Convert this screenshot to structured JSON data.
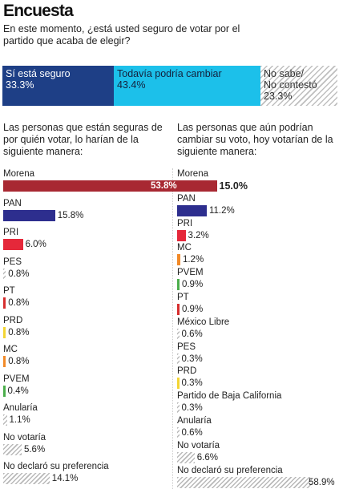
{
  "title": "Encuesta",
  "question": "En este momento, ¿está usted seguro de votar por el partido que acaba de elegir?",
  "stacked": [
    {
      "label": "Sí está seguro",
      "value": "33.3%"
    },
    {
      "label": "Todavía podría cambiar",
      "value": "43.4%"
    },
    {
      "label_line1": "No sabe/",
      "label_line2": "No contestó",
      "value": "23.3%"
    }
  ],
  "left_header": "Las personas que están seguras de por quién votar, lo harían de la siguiente manera:",
  "right_header": "Las personas que aún podrían cambiar su voto, hoy votarían de la siguiente manera:",
  "colors": {
    "Morena": "#a82832",
    "PAN": "#2d2e8e",
    "PRI": "#e5283a",
    "MC": "#f28a28",
    "PVEM": "#4cae4c",
    "PRD": "#f3d533",
    "PT": "#d62d2d",
    "other": "#b9b9b9",
    "sure": "#1e3f86",
    "maybe": "#1cc0ea"
  },
  "chart_data": [
    {
      "type": "bar",
      "orientation": "horizontal",
      "categories": [
        "Morena",
        "PAN",
        "PRI",
        "PES",
        "PT",
        "PRD",
        "MC",
        "PVEM",
        "Anularía",
        "No votaría",
        "No declaró su preferencia"
      ],
      "values": [
        53.8,
        15.8,
        6.0,
        0.8,
        0.8,
        0.8,
        0.8,
        0.4,
        1.1,
        5.6,
        14.1
      ],
      "labels": [
        "53.8%",
        "15.8%",
        "6.0%",
        "0.8%",
        "0.8%",
        "0.8%",
        "0.8%",
        "0.4%",
        "1.1%",
        "5.6%",
        "14.1%"
      ]
    },
    {
      "type": "bar",
      "orientation": "horizontal",
      "categories": [
        "Morena",
        "PAN",
        "PRI",
        "MC",
        "PVEM",
        "PT",
        "México Libre",
        "PES",
        "PRD",
        "Partido de Baja California",
        "Anularía",
        "No votaría",
        "No declaró su preferencia"
      ],
      "values": [
        15.0,
        11.2,
        3.2,
        1.2,
        0.9,
        0.9,
        0.6,
        0.3,
        0.3,
        0.3,
        0.6,
        6.6,
        58.9
      ],
      "labels": [
        "15.0%",
        "11.2%",
        "3.2%",
        "1.2%",
        "0.9%",
        "0.9%",
        "0.6%",
        "0.3%",
        "0.3%",
        "0.3%",
        "0.6%",
        "6.6%",
        "58.9%"
      ]
    }
  ]
}
